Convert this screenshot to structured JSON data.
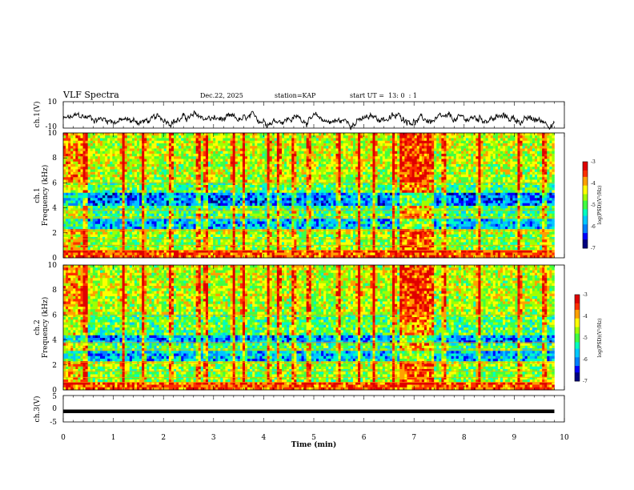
{
  "header": {
    "title": "VLF Spectra",
    "date": "Dec.22, 2025",
    "station": "station=KAP",
    "start_ut": "start UT =  13: 0  : 1"
  },
  "colors": {
    "palette": [
      "#000080",
      "#0000ff",
      "#0080ff",
      "#00c8ff",
      "#00ffc0",
      "#40ff40",
      "#a0ff00",
      "#ffff00",
      "#ffa000",
      "#ff3000",
      "#e00000",
      "#ffd0d0"
    ],
    "trace": "#000000",
    "axis": "#000000"
  },
  "chart_data": [
    {
      "type": "line",
      "name": "ch1-waveform",
      "ylabel": "ch.1(V)",
      "ylim": [
        -10,
        10
      ],
      "yticks": [
        "10",
        "-10"
      ],
      "xlim": [
        0,
        10
      ],
      "data_end_min": 9.8,
      "mean": -3.5,
      "amplitude": 3.5
    },
    {
      "type": "heatmap",
      "name": "ch1-spectrogram",
      "ylabel": "ch.1",
      "ylabel2": "Frequency (kHz)",
      "ylim": [
        0,
        10
      ],
      "yticks": [
        "0",
        "2",
        "4",
        "6",
        "8",
        "10"
      ],
      "xlim": [
        0,
        10
      ],
      "data_end_min": 9.8,
      "colorbar": {
        "label": "log(PSD)(V²/Hz)",
        "range": [
          -7,
          -3
        ],
        "ticks": [
          "-3",
          "-4",
          "-5",
          "-6",
          "-7"
        ]
      },
      "bands_khz": [
        {
          "f0": 0.0,
          "f1": 0.6,
          "level": 0.85
        },
        {
          "f0": 0.6,
          "f1": 1.8,
          "level": 0.55
        },
        {
          "f0": 1.8,
          "f1": 2.3,
          "level": 0.62
        },
        {
          "f0": 2.3,
          "f1": 3.2,
          "level": 0.3
        },
        {
          "f0": 3.2,
          "f1": 3.8,
          "level": 0.5
        },
        {
          "f0": 3.8,
          "f1": 4.2,
          "level": 0.45
        },
        {
          "f0": 4.2,
          "f1": 5.2,
          "level": 0.22
        },
        {
          "f0": 5.2,
          "f1": 6.0,
          "level": 0.5
        },
        {
          "f0": 6.0,
          "f1": 7.5,
          "level": 0.6
        },
        {
          "f0": 7.5,
          "f1": 10.0,
          "level": 0.62
        }
      ],
      "burst_minutes": [
        0.45,
        1.2,
        1.6,
        2.15,
        2.7,
        2.85,
        3.4,
        3.6,
        4.1,
        4.3,
        4.6,
        4.9,
        5.5,
        5.9,
        6.2,
        6.6,
        6.75,
        7.0,
        7.2,
        7.6,
        8.3,
        9.1,
        9.6
      ],
      "storm_min": [
        6.7,
        7.4
      ]
    },
    {
      "type": "heatmap",
      "name": "ch2-spectrogram",
      "ylabel": "ch.2",
      "ylabel2": "Frequency (kHz)",
      "ylim": [
        0,
        10
      ],
      "yticks": [
        "0",
        "2",
        "4",
        "6",
        "8",
        "10"
      ],
      "xlim": [
        0,
        10
      ],
      "data_end_min": 9.8,
      "colorbar": {
        "label": "log(PSD)(V²/Hz)",
        "range": [
          -7,
          -3
        ],
        "ticks": [
          "-3",
          "-4",
          "-5",
          "-6",
          "-7"
        ]
      },
      "bands_khz": [
        {
          "f0": 0.0,
          "f1": 0.6,
          "level": 0.85
        },
        {
          "f0": 0.6,
          "f1": 1.8,
          "level": 0.55
        },
        {
          "f0": 1.8,
          "f1": 2.3,
          "level": 0.6
        },
        {
          "f0": 2.3,
          "f1": 3.2,
          "level": 0.3
        },
        {
          "f0": 3.2,
          "f1": 3.7,
          "level": 0.5
        },
        {
          "f0": 3.7,
          "f1": 4.4,
          "level": 0.25
        },
        {
          "f0": 4.4,
          "f1": 6.0,
          "level": 0.5
        },
        {
          "f0": 6.0,
          "f1": 7.5,
          "level": 0.6
        },
        {
          "f0": 7.5,
          "f1": 10.0,
          "level": 0.62
        }
      ],
      "burst_minutes": [
        0.45,
        1.2,
        1.6,
        2.15,
        2.7,
        2.85,
        3.4,
        3.6,
        4.1,
        4.3,
        4.6,
        4.9,
        5.5,
        5.9,
        6.2,
        6.6,
        6.75,
        7.0,
        7.2,
        7.6,
        8.3,
        9.1,
        9.6
      ],
      "storm_min": [
        6.7,
        7.4
      ]
    },
    {
      "type": "line",
      "name": "ch3-waveform",
      "ylabel": "ch.3(V)",
      "ylim": [
        -5,
        5
      ],
      "yticks": [
        "5",
        "0",
        "-5"
      ],
      "xlim": [
        0,
        10
      ],
      "data_end_min": 9.8,
      "mean": -1.0,
      "amplitude": 0.3,
      "xlabel": "Time (min)",
      "xticks": [
        "0",
        "1",
        "2",
        "3",
        "4",
        "5",
        "6",
        "7",
        "8",
        "9",
        "10"
      ]
    }
  ]
}
